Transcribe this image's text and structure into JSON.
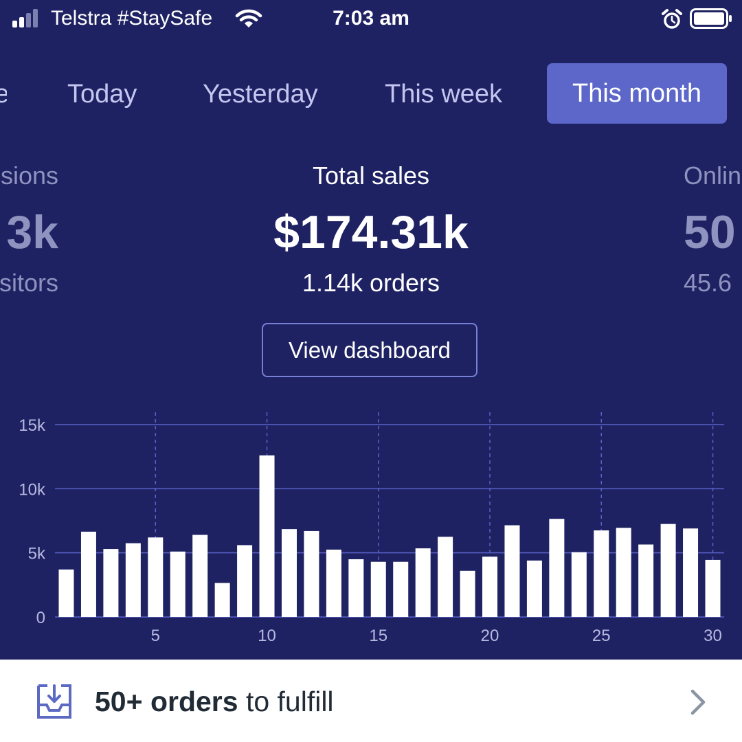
{
  "status_bar": {
    "carrier": "Telstra #StaySafe",
    "time": "7:03 am",
    "icons": [
      "signal-icon",
      "wifi-icon",
      "alarm-icon",
      "battery-icon"
    ]
  },
  "tabs": [
    {
      "label": "e",
      "partial": true
    },
    {
      "label": "Today"
    },
    {
      "label": "Yesterday"
    },
    {
      "label": "This week"
    },
    {
      "label": "This month",
      "active": true
    }
  ],
  "metrics": {
    "left": {
      "title": "sions",
      "value": "3k",
      "sub": "sitors"
    },
    "center": {
      "title": "Total sales",
      "value": "$174.31k",
      "sub": "1.14k orders"
    },
    "right": {
      "title": "Onlin",
      "value": "50",
      "sub": "45.6"
    }
  },
  "view_dashboard_label": "View dashboard",
  "colors": {
    "background": "#1f2262",
    "active_tab": "#5c67c9",
    "bar": "#ffffff",
    "gridline": "#5961c7"
  },
  "chart_data": {
    "type": "bar",
    "x": [
      1,
      2,
      3,
      4,
      5,
      6,
      7,
      8,
      9,
      10,
      11,
      12,
      13,
      14,
      15,
      16,
      17,
      18,
      19,
      20,
      21,
      22,
      23,
      24,
      25,
      26,
      27,
      28,
      29,
      30
    ],
    "values": [
      3700,
      6650,
      5300,
      5750,
      6200,
      5100,
      6400,
      2650,
      5600,
      12600,
      6850,
      6700,
      5250,
      4500,
      4300,
      4300,
      5350,
      6250,
      3600,
      4700,
      7150,
      4400,
      7650,
      5050,
      6750,
      6950,
      5650,
      7250,
      6900,
      4450
    ],
    "xticks": [
      5,
      10,
      15,
      20,
      25,
      30
    ],
    "xtick_labels": [
      "5",
      "10",
      "15",
      "20",
      "25",
      "30"
    ],
    "yticks": [
      0,
      5000,
      10000,
      15000
    ],
    "ytick_labels": [
      "0",
      "5k",
      "10k",
      "15k"
    ],
    "ylim": [
      0,
      15000
    ],
    "grid": true
  },
  "fulfill": {
    "count": "50+ orders",
    "rest": " to fulfill",
    "icon": "inbox-download-icon",
    "chevron": "chevron-right-icon"
  }
}
